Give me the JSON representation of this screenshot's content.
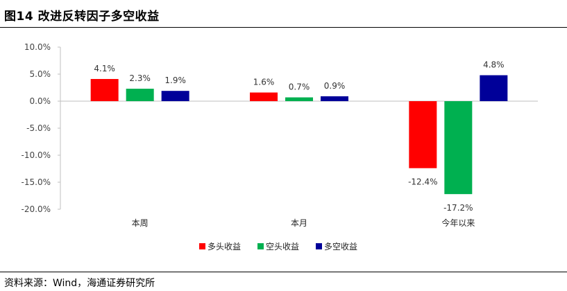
{
  "header": {
    "title": "图14 改进反转因子多空收益"
  },
  "footer": {
    "source": "资料来源：Wind，海通证券研究所"
  },
  "chart_data": {
    "type": "bar",
    "title": "",
    "xlabel": "",
    "ylabel": "",
    "categories": [
      "本周",
      "本月",
      "今年以来"
    ],
    "series": [
      {
        "name": "多头收益",
        "values": [
          4.1,
          1.6,
          -12.4
        ],
        "color": "#ff0000"
      },
      {
        "name": "空头收益",
        "values": [
          2.3,
          0.7,
          -17.2
        ],
        "color": "#00b050"
      },
      {
        "name": "多空收益",
        "values": [
          1.9,
          0.9,
          4.8
        ],
        "color": "#000099"
      }
    ],
    "ylim": [
      -20,
      10
    ],
    "yticks": [
      "10.0%",
      "5.0%",
      "0.0%",
      "-5.0%",
      "-10.0%",
      "-15.0%",
      "-20.0%"
    ],
    "unit": "%",
    "legend": "bottom",
    "grid": false
  }
}
